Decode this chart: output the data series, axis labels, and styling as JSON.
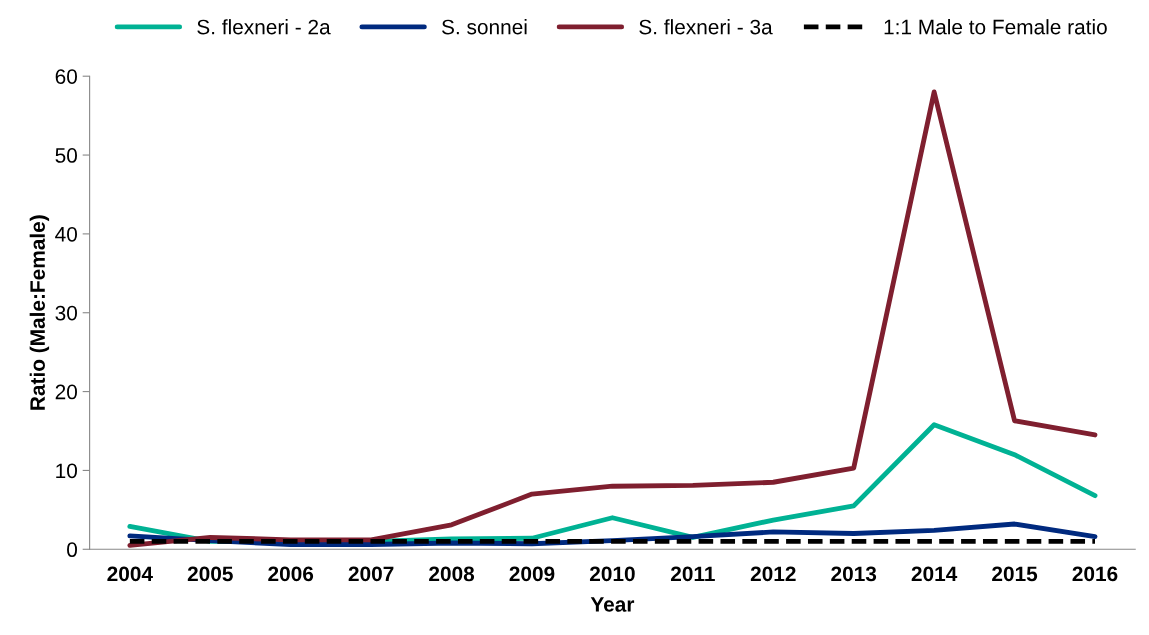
{
  "chart_data": {
    "type": "line",
    "xlabel": "Year",
    "ylabel": "Ratio (Male:Female)",
    "categories": [
      "2004",
      "2005",
      "2006",
      "2007",
      "2008",
      "2009",
      "2010",
      "2011",
      "2012",
      "2013",
      "2014",
      "2015",
      "2016"
    ],
    "series": [
      {
        "name": "S. flexneri - 2a",
        "color": "#00b294",
        "values": [
          2.9,
          1.0,
          1.0,
          1.0,
          1.3,
          1.4,
          4.0,
          1.5,
          3.7,
          5.5,
          15.8,
          12.0,
          6.8
        ]
      },
      {
        "name": "S. sonnei",
        "color": "#002a7f",
        "values": [
          1.7,
          1.1,
          0.6,
          0.6,
          0.8,
          0.7,
          1.1,
          1.6,
          2.2,
          2.0,
          2.4,
          3.2,
          1.6
        ]
      },
      {
        "name": "S. flexneri - 3a",
        "color": "#7f1f2f",
        "values": [
          0.5,
          1.5,
          1.2,
          1.2,
          3.1,
          7.0,
          8.0,
          8.1,
          8.5,
          10.3,
          58.0,
          16.3,
          14.5
        ]
      }
    ],
    "ref_lines": [
      {
        "axis": "y",
        "value": 1,
        "label": "1:1 Male to Female ratio",
        "color": "#000000",
        "line_style": "dashed"
      }
    ],
    "ylim": [
      0,
      60
    ],
    "yticks": [
      0,
      10,
      20,
      30,
      40,
      50,
      60
    ],
    "grid": false,
    "legend": "top",
    "marker": "none",
    "line_style": "solid"
  }
}
